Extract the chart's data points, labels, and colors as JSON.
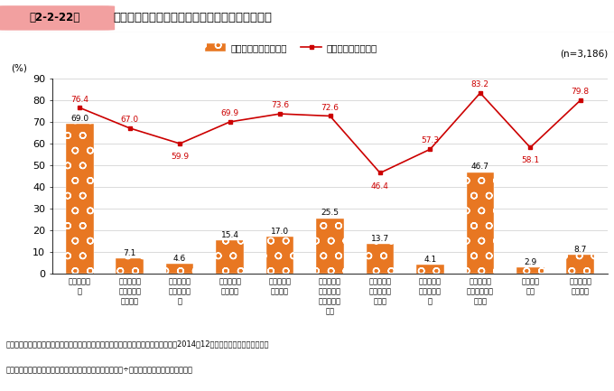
{
  "title_box": "第2-2-22図",
  "title_main": "採用手段ごとの利用実績及び採用実現率（中途）",
  "n_label": "(n=3,186)",
  "categories": [
    "ハローワー\nク",
    "教育機関の\n紹介（就職\n担当等）",
    "中小企業支\n援機関の仲\n介",
    "就職ポータ\nルサイト",
    "人材紹介会\n社の仲介",
    "就職情報誌\nや新聞・雑\n誌等の求人\n広告",
    "自社のホー\nムページで\nの告知",
    "インターン\nシップの実\n施",
    "知人・友人\n（親族含む）\nの紹介",
    "ジョブカ\nフェ",
    "取引先・銀\n行の紹介"
  ],
  "bar_values": [
    69.0,
    7.1,
    4.6,
    15.4,
    17.0,
    25.5,
    13.7,
    4.1,
    46.7,
    2.9,
    8.7
  ],
  "line_values": [
    76.4,
    67.0,
    59.9,
    69.9,
    73.6,
    72.6,
    46.4,
    57.3,
    83.2,
    58.1,
    79.8
  ],
  "bar_color": "#E87722",
  "line_color": "#CC0000",
  "ylabel": "(%)",
  "ylim": [
    0,
    90
  ],
  "yticks": [
    0,
    10,
    20,
    30,
    40,
    50,
    60,
    70,
    80,
    90
  ],
  "legend_bar": "利用実績あり（中途）",
  "legend_line": "採用実現率（中途）",
  "footnote1": "資料：中小企業庁委託「中小企業・小規模事業者の人材確保と育成に関する調査」（2014年12月、（株）野村総合研究所）",
  "footnote2": "（注）　採用実現率とは、採用手段ごとに「採用実績あり÷利用実績あり」から算出した。",
  "title_box_color": "#F2A0A0",
  "background_color": "#ffffff",
  "grid_color": "#cccccc"
}
